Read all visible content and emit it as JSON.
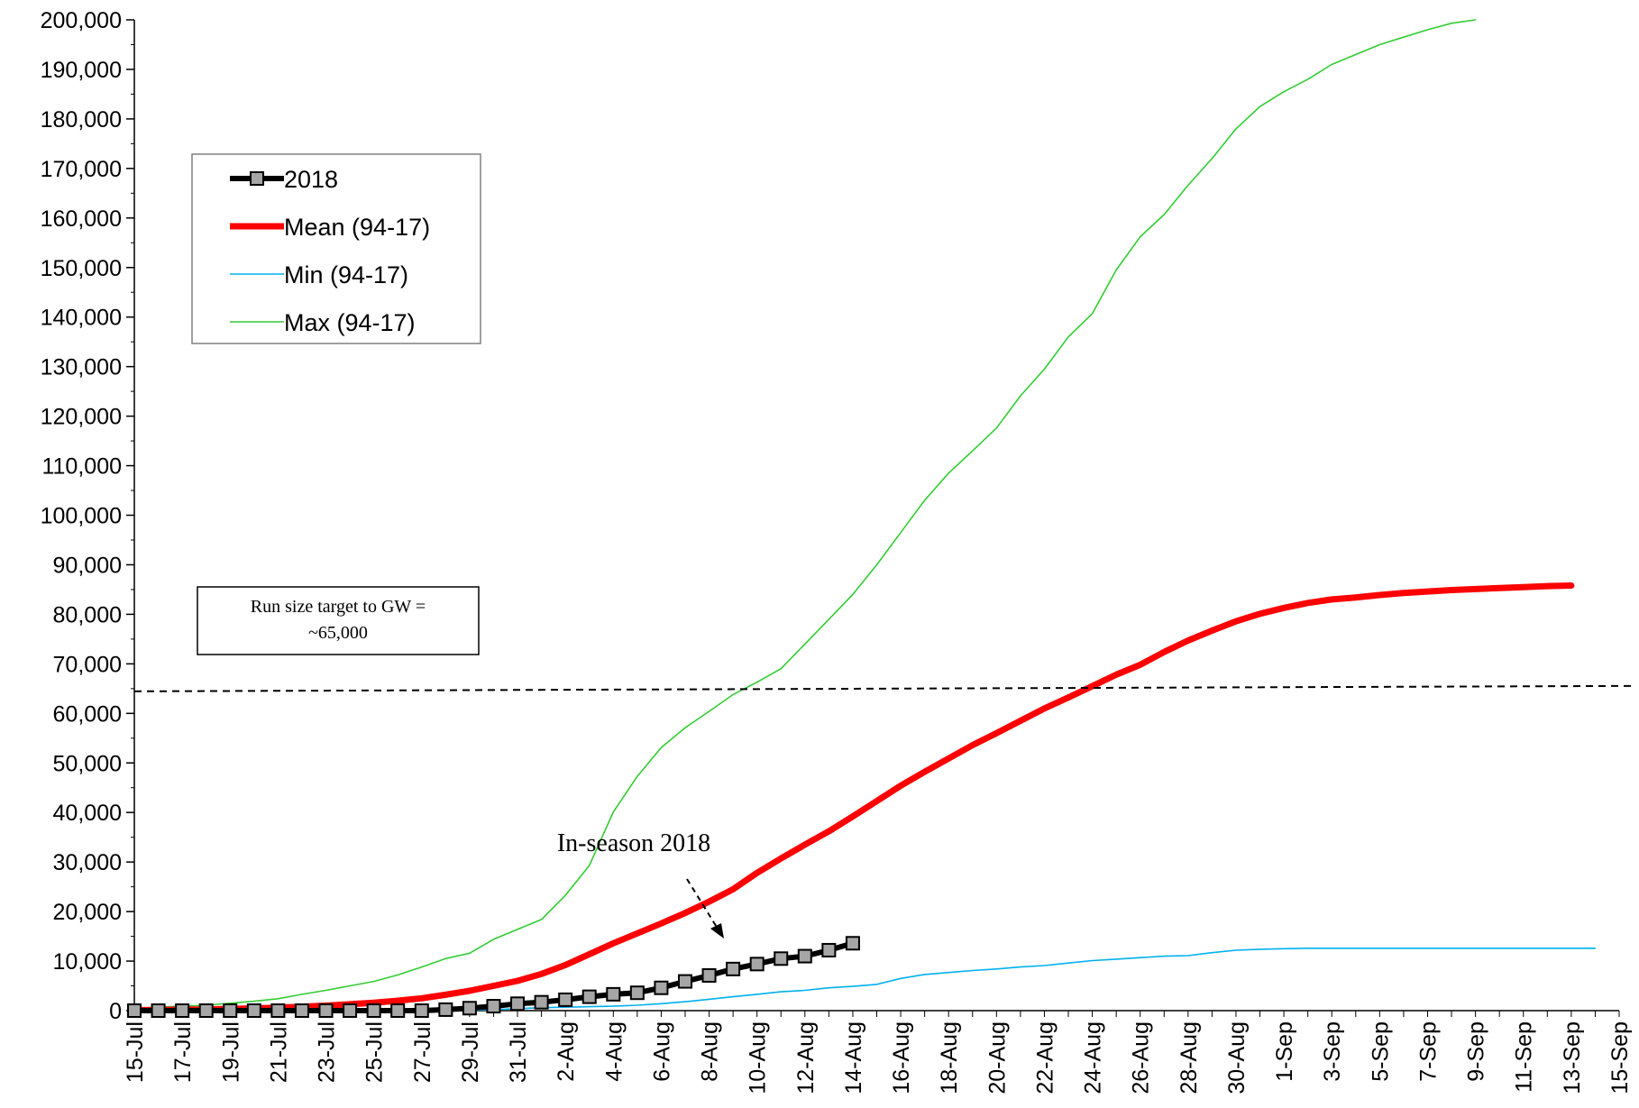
{
  "chart_data": {
    "type": "line",
    "title": "",
    "xlabel": "",
    "ylabel": "",
    "ylim": [
      0,
      200000
    ],
    "y_ticks": [
      "0",
      "10,000",
      "20,000",
      "30,000",
      "40,000",
      "50,000",
      "60,000",
      "70,000",
      "80,000",
      "90,000",
      "100,000",
      "110,000",
      "120,000",
      "130,000",
      "140,000",
      "150,000",
      "160,000",
      "170,000",
      "180,000",
      "190,000",
      "200,000"
    ],
    "x_tick_labels": [
      "15-Jul",
      "17-Jul",
      "19-Jul",
      "21-Jul",
      "23-Jul",
      "25-Jul",
      "27-Jul",
      "29-Jul",
      "31-Jul",
      "2-Aug",
      "4-Aug",
      "6-Aug",
      "8-Aug",
      "10-Aug",
      "12-Aug",
      "14-Aug",
      "16-Aug",
      "18-Aug",
      "20-Aug",
      "22-Aug",
      "24-Aug",
      "26-Aug",
      "28-Aug",
      "30-Aug",
      "1-Sep",
      "3-Sep",
      "5-Sep",
      "7-Sep",
      "9-Sep",
      "11-Sep",
      "13-Sep",
      "15-Sep"
    ],
    "x_days_from": "15-Jul",
    "x_range_days": [
      0,
      62
    ],
    "legend_position": "top-left",
    "series": [
      {
        "name": "2018",
        "color": "#000000",
        "marker": "square",
        "marker_color": "#A6A6A6",
        "values": [
          0,
          0,
          0,
          0,
          0,
          0,
          0,
          0,
          0,
          0,
          0,
          0,
          0,
          200,
          500,
          900,
          1400,
          1700,
          2200,
          2800,
          3300,
          3600,
          4600,
          5900,
          7100,
          8400,
          9400,
          10500,
          11000,
          12200,
          13600
        ]
      },
      {
        "name": "Mean (94-17)",
        "color": "#FF0000",
        "values": [
          100,
          150,
          200,
          250,
          350,
          450,
          600,
          800,
          1000,
          1300,
          1600,
          2000,
          2500,
          3200,
          4000,
          5000,
          6000,
          7400,
          9200,
          11400,
          13600,
          15600,
          17600,
          19700,
          22000,
          24500,
          27800,
          30700,
          33500,
          36200,
          39200,
          42300,
          45400,
          48200,
          50900,
          53600,
          56000,
          58500,
          61000,
          63200,
          65500,
          67800,
          69800,
          72400,
          74700,
          76700,
          78600,
          80100,
          81300,
          82300,
          83000,
          83400,
          83900,
          84300,
          84600,
          84900,
          85100,
          85300,
          85500,
          85700,
          85800
        ]
      },
      {
        "name": "Min (94-17)",
        "color": "#00B0F0",
        "values": [
          0,
          0,
          0,
          0,
          0,
          0,
          0,
          0,
          0,
          0,
          0,
          0,
          0,
          50,
          100,
          200,
          400,
          600,
          700,
          800,
          900,
          1100,
          1400,
          1800,
          2300,
          2800,
          3300,
          3800,
          4100,
          4600,
          4900,
          5300,
          6500,
          7300,
          7700,
          8100,
          8400,
          8800,
          9100,
          9600,
          10100,
          10400,
          10700,
          11000,
          11100,
          11700,
          12200,
          12400,
          12500,
          12600,
          12600,
          12600,
          12600,
          12600,
          12600,
          12600,
          12600,
          12600,
          12600,
          12600,
          12600,
          12600
        ]
      },
      {
        "name": "Max (94-17)",
        "color": "#33CC33",
        "values": [
          500,
          700,
          900,
          1100,
          1500,
          1900,
          2400,
          3300,
          4100,
          5000,
          5900,
          7200,
          8800,
          10500,
          11600,
          14400,
          16400,
          18400,
          23300,
          29300,
          40100,
          47300,
          53100,
          57100,
          60400,
          63800,
          66300,
          69000,
          74000,
          79000,
          84000,
          90000,
          96500,
          103000,
          108500,
          113000,
          117600,
          124100,
          129500,
          136000,
          140700,
          149500,
          156200,
          160700,
          166600,
          172000,
          178000,
          182500,
          185500,
          188000,
          191000,
          193000,
          195000,
          196500,
          198000,
          199300,
          200000
        ]
      }
    ],
    "reference_line": {
      "value": 65000,
      "style": "dashed"
    },
    "annotations": {
      "target_box": [
        "Run size target to GW =",
        "~65,000"
      ],
      "in_season_label": "In-season 2018"
    }
  }
}
